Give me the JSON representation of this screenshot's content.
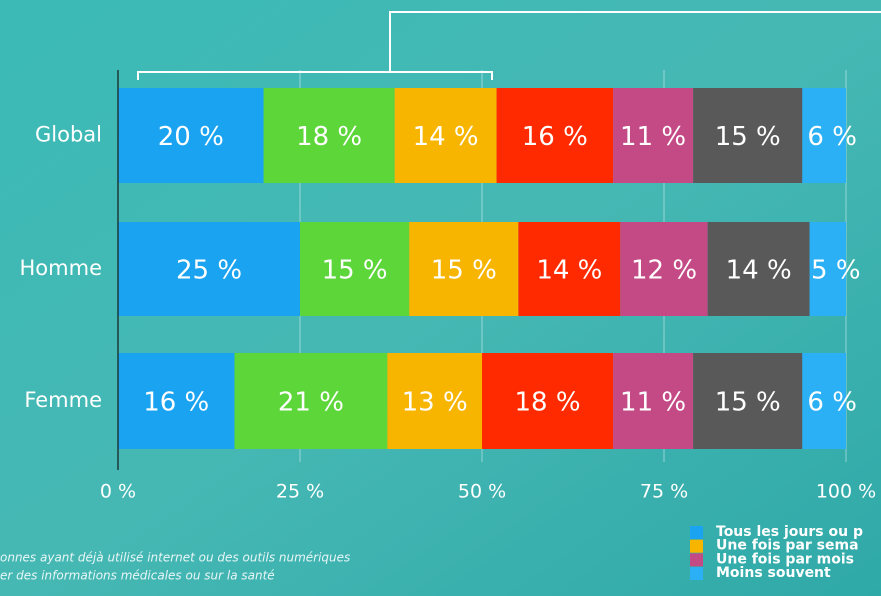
{
  "chart_data": {
    "type": "stacked_barh",
    "categories": [
      "Global",
      "Homme",
      "Femme"
    ],
    "series": [
      {
        "name": "Tous les jours ou p",
        "color": "#1aa3f0",
        "values": [
          20,
          25,
          16
        ],
        "value_labels": [
          "20 %",
          "25 %",
          "16 %"
        ]
      },
      {
        "name": null,
        "color": "#5dd63a",
        "values": [
          18,
          15,
          21
        ],
        "value_labels": [
          "18 %",
          "15 %",
          "21 %"
        ]
      },
      {
        "name": "Une fois par sema",
        "color": "#f7b500",
        "values": [
          14,
          15,
          13
        ],
        "value_labels": [
          "14 %",
          "15 %",
          "13 %"
        ]
      },
      {
        "name": null,
        "color": "#ff2a00",
        "values": [
          16,
          14,
          18
        ],
        "value_labels": [
          "16 %",
          "14 %",
          "18 %"
        ]
      },
      {
        "name": "Une fois par mois",
        "color": "#c44a86",
        "values": [
          11,
          12,
          11
        ],
        "value_labels": [
          "11 %",
          "12 %",
          "11 %"
        ]
      },
      {
        "name": null,
        "color": "#595959",
        "values": [
          15,
          14,
          15
        ],
        "value_labels": [
          "15 %",
          "14 %",
          "15 %"
        ]
      },
      {
        "name": "Moins souvent",
        "color": "#2bb0f5",
        "values": [
          6,
          5,
          6
        ],
        "value_labels": [
          "6 %",
          "5 %",
          "6 %"
        ]
      }
    ],
    "xlim": [
      0,
      100
    ],
    "xticks": [
      {
        "value": 0,
        "label": "0 %"
      },
      {
        "value": 25,
        "label": "25 %"
      },
      {
        "value": 50,
        "label": "50 %"
      },
      {
        "value": 75,
        "label": "75 %"
      },
      {
        "value": 100,
        "label": "100 %"
      }
    ],
    "grid": true,
    "footnote": [
      "onnes ayant déjà utilisé internet ou des outils numériques",
      "er des informations médicales ou sur la santé"
    ]
  }
}
